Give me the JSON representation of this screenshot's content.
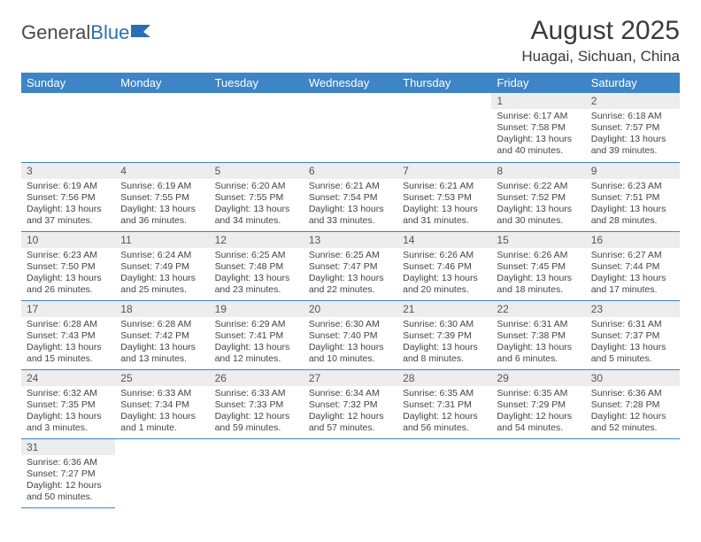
{
  "brand": {
    "part1": "General",
    "part2": "Blue"
  },
  "header": {
    "title": "August 2025",
    "location": "Huagai, Sichuan, China"
  },
  "colors": {
    "header_bg": "#3d85c6",
    "daynum_bg": "#ededed",
    "border": "#3d85c6"
  },
  "weekdays": [
    "Sunday",
    "Monday",
    "Tuesday",
    "Wednesday",
    "Thursday",
    "Friday",
    "Saturday"
  ],
  "weeks": [
    [
      null,
      null,
      null,
      null,
      null,
      {
        "n": "1",
        "sunrise": "Sunrise: 6:17 AM",
        "sunset": "Sunset: 7:58 PM",
        "daylight": "Daylight: 13 hours and 40 minutes."
      },
      {
        "n": "2",
        "sunrise": "Sunrise: 6:18 AM",
        "sunset": "Sunset: 7:57 PM",
        "daylight": "Daylight: 13 hours and 39 minutes."
      }
    ],
    [
      {
        "n": "3",
        "sunrise": "Sunrise: 6:19 AM",
        "sunset": "Sunset: 7:56 PM",
        "daylight": "Daylight: 13 hours and 37 minutes."
      },
      {
        "n": "4",
        "sunrise": "Sunrise: 6:19 AM",
        "sunset": "Sunset: 7:55 PM",
        "daylight": "Daylight: 13 hours and 36 minutes."
      },
      {
        "n": "5",
        "sunrise": "Sunrise: 6:20 AM",
        "sunset": "Sunset: 7:55 PM",
        "daylight": "Daylight: 13 hours and 34 minutes."
      },
      {
        "n": "6",
        "sunrise": "Sunrise: 6:21 AM",
        "sunset": "Sunset: 7:54 PM",
        "daylight": "Daylight: 13 hours and 33 minutes."
      },
      {
        "n": "7",
        "sunrise": "Sunrise: 6:21 AM",
        "sunset": "Sunset: 7:53 PM",
        "daylight": "Daylight: 13 hours and 31 minutes."
      },
      {
        "n": "8",
        "sunrise": "Sunrise: 6:22 AM",
        "sunset": "Sunset: 7:52 PM",
        "daylight": "Daylight: 13 hours and 30 minutes."
      },
      {
        "n": "9",
        "sunrise": "Sunrise: 6:23 AM",
        "sunset": "Sunset: 7:51 PM",
        "daylight": "Daylight: 13 hours and 28 minutes."
      }
    ],
    [
      {
        "n": "10",
        "sunrise": "Sunrise: 6:23 AM",
        "sunset": "Sunset: 7:50 PM",
        "daylight": "Daylight: 13 hours and 26 minutes."
      },
      {
        "n": "11",
        "sunrise": "Sunrise: 6:24 AM",
        "sunset": "Sunset: 7:49 PM",
        "daylight": "Daylight: 13 hours and 25 minutes."
      },
      {
        "n": "12",
        "sunrise": "Sunrise: 6:25 AM",
        "sunset": "Sunset: 7:48 PM",
        "daylight": "Daylight: 13 hours and 23 minutes."
      },
      {
        "n": "13",
        "sunrise": "Sunrise: 6:25 AM",
        "sunset": "Sunset: 7:47 PM",
        "daylight": "Daylight: 13 hours and 22 minutes."
      },
      {
        "n": "14",
        "sunrise": "Sunrise: 6:26 AM",
        "sunset": "Sunset: 7:46 PM",
        "daylight": "Daylight: 13 hours and 20 minutes."
      },
      {
        "n": "15",
        "sunrise": "Sunrise: 6:26 AM",
        "sunset": "Sunset: 7:45 PM",
        "daylight": "Daylight: 13 hours and 18 minutes."
      },
      {
        "n": "16",
        "sunrise": "Sunrise: 6:27 AM",
        "sunset": "Sunset: 7:44 PM",
        "daylight": "Daylight: 13 hours and 17 minutes."
      }
    ],
    [
      {
        "n": "17",
        "sunrise": "Sunrise: 6:28 AM",
        "sunset": "Sunset: 7:43 PM",
        "daylight": "Daylight: 13 hours and 15 minutes."
      },
      {
        "n": "18",
        "sunrise": "Sunrise: 6:28 AM",
        "sunset": "Sunset: 7:42 PM",
        "daylight": "Daylight: 13 hours and 13 minutes."
      },
      {
        "n": "19",
        "sunrise": "Sunrise: 6:29 AM",
        "sunset": "Sunset: 7:41 PM",
        "daylight": "Daylight: 13 hours and 12 minutes."
      },
      {
        "n": "20",
        "sunrise": "Sunrise: 6:30 AM",
        "sunset": "Sunset: 7:40 PM",
        "daylight": "Daylight: 13 hours and 10 minutes."
      },
      {
        "n": "21",
        "sunrise": "Sunrise: 6:30 AM",
        "sunset": "Sunset: 7:39 PM",
        "daylight": "Daylight: 13 hours and 8 minutes."
      },
      {
        "n": "22",
        "sunrise": "Sunrise: 6:31 AM",
        "sunset": "Sunset: 7:38 PM",
        "daylight": "Daylight: 13 hours and 6 minutes."
      },
      {
        "n": "23",
        "sunrise": "Sunrise: 6:31 AM",
        "sunset": "Sunset: 7:37 PM",
        "daylight": "Daylight: 13 hours and 5 minutes."
      }
    ],
    [
      {
        "n": "24",
        "sunrise": "Sunrise: 6:32 AM",
        "sunset": "Sunset: 7:35 PM",
        "daylight": "Daylight: 13 hours and 3 minutes."
      },
      {
        "n": "25",
        "sunrise": "Sunrise: 6:33 AM",
        "sunset": "Sunset: 7:34 PM",
        "daylight": "Daylight: 13 hours and 1 minute."
      },
      {
        "n": "26",
        "sunrise": "Sunrise: 6:33 AM",
        "sunset": "Sunset: 7:33 PM",
        "daylight": "Daylight: 12 hours and 59 minutes."
      },
      {
        "n": "27",
        "sunrise": "Sunrise: 6:34 AM",
        "sunset": "Sunset: 7:32 PM",
        "daylight": "Daylight: 12 hours and 57 minutes."
      },
      {
        "n": "28",
        "sunrise": "Sunrise: 6:35 AM",
        "sunset": "Sunset: 7:31 PM",
        "daylight": "Daylight: 12 hours and 56 minutes."
      },
      {
        "n": "29",
        "sunrise": "Sunrise: 6:35 AM",
        "sunset": "Sunset: 7:29 PM",
        "daylight": "Daylight: 12 hours and 54 minutes."
      },
      {
        "n": "30",
        "sunrise": "Sunrise: 6:36 AM",
        "sunset": "Sunset: 7:28 PM",
        "daylight": "Daylight: 12 hours and 52 minutes."
      }
    ],
    [
      {
        "n": "31",
        "sunrise": "Sunrise: 6:36 AM",
        "sunset": "Sunset: 7:27 PM",
        "daylight": "Daylight: 12 hours and 50 minutes."
      },
      null,
      null,
      null,
      null,
      null,
      null
    ]
  ]
}
